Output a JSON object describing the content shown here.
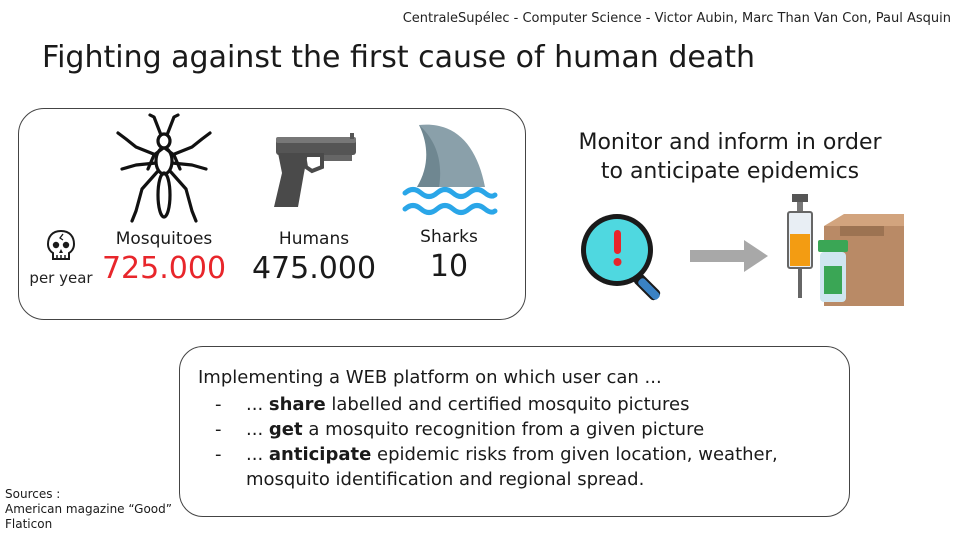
{
  "header": {
    "credit": "CentraleSupélec - Computer Science - Victor Aubin, Marc Than Van Con, Paul Asquin"
  },
  "title": "Fighting against the first cause of human death",
  "stats": {
    "per_year": "per year",
    "items": [
      {
        "label": "Mosquitoes",
        "value": "725.000",
        "icon": "mosquito-icon"
      },
      {
        "label": "Humans",
        "value": "475.000",
        "icon": "pistol-icon"
      },
      {
        "label": "Sharks",
        "value": "10",
        "icon": "shark-fin-icon"
      }
    ],
    "highlight_color": "#e8262b"
  },
  "monitor": {
    "line1": "Monitor and inform in order",
    "line2": "to anticipate epidemics"
  },
  "features": {
    "intro": "Implementing a WEB platform on which user can ...",
    "items": [
      {
        "prefix": "... ",
        "bold": "share",
        "rest": " labelled and certified mosquito pictures"
      },
      {
        "prefix": "... ",
        "bold": "get",
        "rest": " a mosquito recognition from a given picture"
      },
      {
        "prefix": "... ",
        "bold": "anticipate",
        "rest": " epidemic risks from given location, weather,",
        "cont": "mosquito identification and regional spread."
      }
    ],
    "dash": "-"
  },
  "sources": {
    "heading": "Sources :",
    "lines": [
      "American magazine “Good”",
      "Flaticon"
    ]
  }
}
